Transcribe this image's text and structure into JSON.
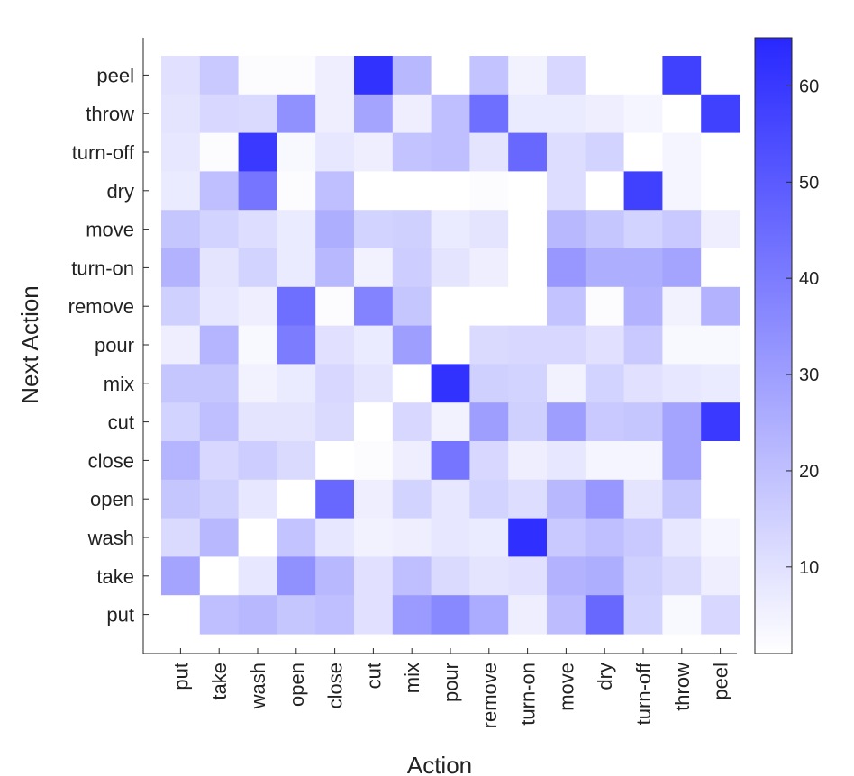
{
  "chart_data": {
    "type": "heatmap",
    "title": "",
    "xlabel": "Action",
    "ylabel": "Next Action",
    "x_categories": [
      "put",
      "take",
      "wash",
      "open",
      "close",
      "cut",
      "mix",
      "pour",
      "remove",
      "turn-on",
      "move",
      "dry",
      "turn-off",
      "throw",
      "peel"
    ],
    "y_categories": [
      "peel",
      "throw",
      "turn-off",
      "dry",
      "move",
      "turn-on",
      "remove",
      "pour",
      "mix",
      "cut",
      "close",
      "open",
      "wash",
      "take",
      "put"
    ],
    "values": [
      [
        10,
        17,
        2,
        2,
        6,
        62,
        22,
        1,
        19,
        5,
        13,
        1,
        1,
        58,
        1
      ],
      [
        9,
        13,
        12,
        34,
        6,
        28,
        6,
        20,
        44,
        7,
        7,
        6,
        4,
        1,
        58
      ],
      [
        8,
        2,
        60,
        3,
        8,
        6,
        19,
        20,
        9,
        46,
        11,
        14,
        1,
        4,
        1
      ],
      [
        7,
        20,
        42,
        2,
        20,
        1,
        1,
        1,
        2,
        1,
        11,
        1,
        58,
        4,
        1
      ],
      [
        18,
        14,
        11,
        7,
        25,
        14,
        15,
        7,
        9,
        1,
        22,
        18,
        14,
        17,
        6
      ],
      [
        24,
        9,
        14,
        7,
        22,
        5,
        16,
        9,
        6,
        1,
        32,
        25,
        25,
        28,
        1
      ],
      [
        15,
        8,
        6,
        44,
        2,
        38,
        18,
        1,
        1,
        1,
        19,
        2,
        24,
        5,
        24
      ],
      [
        6,
        23,
        3,
        40,
        10,
        7,
        30,
        1,
        12,
        13,
        13,
        10,
        17,
        3,
        3
      ],
      [
        18,
        18,
        5,
        7,
        13,
        9,
        1,
        62,
        15,
        14,
        5,
        14,
        10,
        8,
        7
      ],
      [
        14,
        20,
        9,
        9,
        12,
        1,
        13,
        5,
        30,
        15,
        30,
        17,
        18,
        28,
        60
      ],
      [
        23,
        13,
        16,
        12,
        1,
        2,
        6,
        42,
        13,
        6,
        8,
        4,
        4,
        28,
        1
      ],
      [
        18,
        15,
        8,
        1,
        46,
        6,
        14,
        8,
        14,
        11,
        22,
        32,
        9,
        18,
        1
      ],
      [
        12,
        22,
        1,
        19,
        8,
        5,
        6,
        8,
        7,
        63,
        17,
        20,
        17,
        8,
        4
      ],
      [
        28,
        1,
        8,
        34,
        22,
        10,
        20,
        12,
        9,
        10,
        24,
        25,
        15,
        12,
        6
      ],
      [
        1,
        20,
        22,
        18,
        20,
        10,
        31,
        36,
        26,
        6,
        21,
        46,
        14,
        3,
        13
      ]
    ],
    "colorbar": {
      "min": 1,
      "max": 65,
      "ticks": [
        10,
        20,
        30,
        40,
        50,
        60
      ],
      "low_color": "#ffffff",
      "high_color": "#2828ff"
    },
    "grid": false
  }
}
